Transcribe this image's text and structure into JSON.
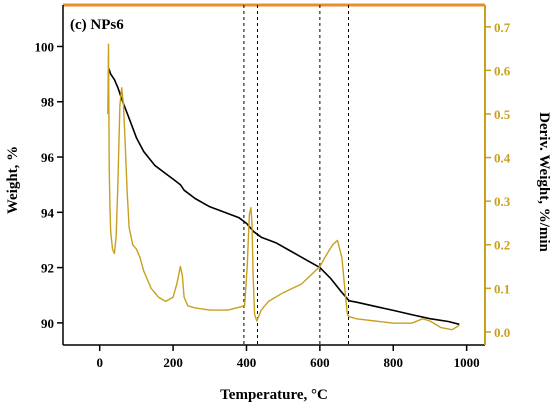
{
  "chart_data": {
    "type": "line",
    "panel_label": "(c) NPs6",
    "xlabel": "Temperature, °C",
    "ylabel_left": "Weight, %",
    "ylabel_right": "Deriv. Weight, %/min",
    "xlim": [
      -100,
      1050
    ],
    "ylim_left": [
      89.2,
      101.5
    ],
    "ylim_right": [
      -0.03,
      0.75
    ],
    "x_ticks": [
      0,
      200,
      400,
      600,
      800,
      1000
    ],
    "y_left_ticks": [
      90,
      92,
      94,
      96,
      98,
      100
    ],
    "y_right_ticks": [
      0.0,
      0.1,
      0.2,
      0.3,
      0.4,
      0.5,
      0.6,
      0.7
    ],
    "y_right_tick_labels": [
      "0.0",
      "0.1",
      "0.2",
      "0.3",
      "0.4",
      "0.5",
      "0.6",
      "0.7"
    ],
    "vertical_lines_x": [
      393,
      430,
      600,
      678
    ],
    "colors": {
      "weight": "#000000",
      "derivative": "#c8a020",
      "right_axis": "#c8a020",
      "frame": "#000000"
    },
    "series": [
      {
        "axis": "left",
        "x": [
          25,
          30,
          40,
          50,
          60,
          80,
          100,
          120,
          150,
          180,
          200,
          220,
          230,
          260,
          300,
          340,
          380,
          400,
          420,
          440,
          480,
          520,
          560,
          600,
          630,
          660,
          680,
          700,
          750,
          800,
          850,
          900,
          950,
          980
        ],
        "y": [
          99.2,
          99.0,
          98.8,
          98.5,
          98.1,
          97.4,
          96.7,
          96.2,
          95.7,
          95.4,
          95.2,
          95.0,
          94.8,
          94.5,
          94.2,
          94.0,
          93.8,
          93.6,
          93.3,
          93.1,
          92.9,
          92.6,
          92.3,
          92.0,
          91.6,
          91.1,
          90.8,
          90.75,
          90.6,
          90.45,
          90.3,
          90.15,
          90.05,
          89.95
        ]
      },
      {
        "axis": "right",
        "x": [
          22,
          24,
          26,
          28,
          30,
          35,
          40,
          45,
          50,
          55,
          60,
          65,
          70,
          75,
          80,
          90,
          100,
          110,
          120,
          140,
          160,
          180,
          200,
          210,
          220,
          225,
          230,
          240,
          260,
          300,
          350,
          395,
          402,
          408,
          412,
          415,
          418,
          422,
          428,
          440,
          460,
          500,
          550,
          600,
          620,
          635,
          648,
          660,
          670,
          675,
          680,
          700,
          750,
          800,
          850,
          880,
          900,
          930,
          960,
          980
        ],
        "y": [
          0.5,
          0.66,
          0.38,
          0.28,
          0.23,
          0.19,
          0.18,
          0.22,
          0.35,
          0.52,
          0.56,
          0.52,
          0.42,
          0.32,
          0.24,
          0.2,
          0.19,
          0.17,
          0.14,
          0.1,
          0.08,
          0.07,
          0.08,
          0.11,
          0.15,
          0.13,
          0.08,
          0.06,
          0.055,
          0.05,
          0.05,
          0.06,
          0.15,
          0.27,
          0.285,
          0.25,
          0.13,
          0.04,
          0.025,
          0.05,
          0.07,
          0.09,
          0.11,
          0.15,
          0.18,
          0.2,
          0.21,
          0.17,
          0.08,
          0.04,
          0.035,
          0.03,
          0.025,
          0.02,
          0.02,
          0.03,
          0.025,
          0.01,
          0.005,
          0.015
        ]
      }
    ]
  }
}
